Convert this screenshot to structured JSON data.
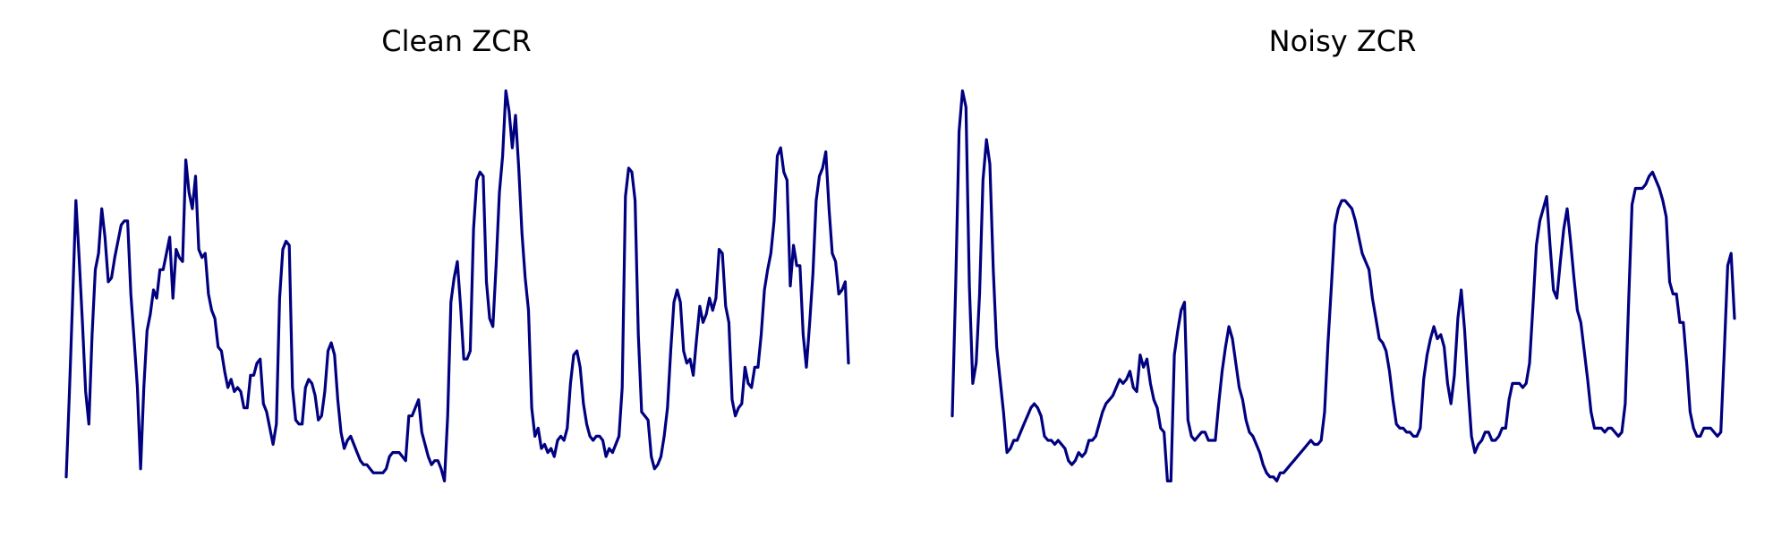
{
  "chart_data": [
    {
      "type": "line",
      "title": "Clean ZCR",
      "xlabel": "",
      "ylabel": "",
      "axes_visible": false,
      "grid": false,
      "legend": "none",
      "ylim": [
        0,
        1
      ],
      "color": "#000080",
      "series": [
        {
          "values": [
            0.04,
            0.25,
            0.48,
            0.72,
            0.58,
            0.42,
            0.25,
            0.17,
            0.39,
            0.55,
            0.59,
            0.7,
            0.63,
            0.52,
            0.53,
            0.58,
            0.62,
            0.66,
            0.67,
            0.67,
            0.49,
            0.38,
            0.26,
            0.06,
            0.26,
            0.4,
            0.44,
            0.5,
            0.48,
            0.55,
            0.55,
            0.59,
            0.63,
            0.48,
            0.6,
            0.58,
            0.57,
            0.82,
            0.74,
            0.7,
            0.78,
            0.6,
            0.58,
            0.59,
            0.49,
            0.45,
            0.43,
            0.36,
            0.35,
            0.3,
            0.26,
            0.28,
            0.25,
            0.26,
            0.25,
            0.21,
            0.21,
            0.29,
            0.29,
            0.32,
            0.33,
            0.22,
            0.2,
            0.16,
            0.12,
            0.17,
            0.48,
            0.6,
            0.62,
            0.61,
            0.26,
            0.18,
            0.17,
            0.17,
            0.26,
            0.28,
            0.27,
            0.24,
            0.18,
            0.19,
            0.25,
            0.35,
            0.37,
            0.34,
            0.23,
            0.15,
            0.11,
            0.13,
            0.14,
            0.12,
            0.1,
            0.08,
            0.07,
            0.07,
            0.06,
            0.05,
            0.05,
            0.05,
            0.05,
            0.06,
            0.09,
            0.1,
            0.1,
            0.1,
            0.09,
            0.08,
            0.19,
            0.19,
            0.21,
            0.23,
            0.15,
            0.12,
            0.09,
            0.07,
            0.08,
            0.08,
            0.06,
            0.03,
            0.19,
            0.47,
            0.53,
            0.57,
            0.46,
            0.33,
            0.33,
            0.35,
            0.65,
            0.77,
            0.79,
            0.78,
            0.52,
            0.43,
            0.41,
            0.56,
            0.74,
            0.83,
            0.99,
            0.94,
            0.85,
            0.93,
            0.8,
            0.64,
            0.53,
            0.45,
            0.21,
            0.14,
            0.16,
            0.11,
            0.12,
            0.1,
            0.11,
            0.09,
            0.13,
            0.14,
            0.13,
            0.16,
            0.27,
            0.34,
            0.35,
            0.31,
            0.22,
            0.17,
            0.14,
            0.13,
            0.14,
            0.14,
            0.13,
            0.09,
            0.11,
            0.1,
            0.12,
            0.14,
            0.26,
            0.73,
            0.8,
            0.79,
            0.72,
            0.39,
            0.2,
            0.19,
            0.18,
            0.09,
            0.06,
            0.07,
            0.09,
            0.14,
            0.21,
            0.35,
            0.47,
            0.5,
            0.47,
            0.35,
            0.32,
            0.33,
            0.29,
            0.38,
            0.46,
            0.42,
            0.44,
            0.48,
            0.45,
            0.48,
            0.6,
            0.59,
            0.46,
            0.42,
            0.23,
            0.19,
            0.21,
            0.22,
            0.31,
            0.27,
            0.26,
            0.31,
            0.31,
            0.39,
            0.5,
            0.55,
            0.59,
            0.67,
            0.83,
            0.85,
            0.79,
            0.77,
            0.51,
            0.61,
            0.56,
            0.56,
            0.39,
            0.31,
            0.42,
            0.54,
            0.72,
            0.78,
            0.8,
            0.84,
            0.7,
            0.59,
            0.57,
            0.49,
            0.5,
            0.52,
            0.32
          ]
        }
      ]
    },
    {
      "type": "line",
      "title": "Noisy ZCR",
      "xlabel": "",
      "ylabel": "",
      "axes_visible": false,
      "grid": false,
      "legend": "none",
      "ylim": [
        0,
        1
      ],
      "color": "#000080",
      "series": [
        {
          "values": [
            0.19,
            0.51,
            0.89,
            0.99,
            0.95,
            0.51,
            0.27,
            0.32,
            0.49,
            0.77,
            0.87,
            0.81,
            0.55,
            0.36,
            0.28,
            0.2,
            0.1,
            0.11,
            0.13,
            0.13,
            0.15,
            0.17,
            0.19,
            0.21,
            0.22,
            0.21,
            0.19,
            0.14,
            0.13,
            0.13,
            0.12,
            0.13,
            0.12,
            0.11,
            0.08,
            0.07,
            0.08,
            0.1,
            0.09,
            0.1,
            0.13,
            0.13,
            0.14,
            0.17,
            0.2,
            0.22,
            0.23,
            0.24,
            0.26,
            0.28,
            0.27,
            0.28,
            0.3,
            0.26,
            0.25,
            0.34,
            0.31,
            0.33,
            0.27,
            0.23,
            0.21,
            0.16,
            0.15,
            0.03,
            0.03,
            0.34,
            0.4,
            0.45,
            0.47,
            0.18,
            0.14,
            0.13,
            0.14,
            0.15,
            0.15,
            0.13,
            0.13,
            0.13,
            0.22,
            0.3,
            0.36,
            0.41,
            0.38,
            0.32,
            0.26,
            0.23,
            0.18,
            0.15,
            0.14,
            0.12,
            0.1,
            0.07,
            0.05,
            0.04,
            0.04,
            0.03,
            0.05,
            0.05,
            0.06,
            0.07,
            0.08,
            0.09,
            0.1,
            0.11,
            0.12,
            0.13,
            0.12,
            0.12,
            0.13,
            0.2,
            0.37,
            0.51,
            0.66,
            0.7,
            0.72,
            0.72,
            0.71,
            0.7,
            0.67,
            0.63,
            0.59,
            0.57,
            0.55,
            0.48,
            0.43,
            0.38,
            0.37,
            0.35,
            0.3,
            0.23,
            0.17,
            0.16,
            0.16,
            0.15,
            0.15,
            0.14,
            0.14,
            0.16,
            0.28,
            0.34,
            0.38,
            0.41,
            0.38,
            0.39,
            0.36,
            0.27,
            0.22,
            0.29,
            0.43,
            0.5,
            0.4,
            0.26,
            0.14,
            0.1,
            0.12,
            0.13,
            0.15,
            0.15,
            0.13,
            0.13,
            0.14,
            0.16,
            0.16,
            0.23,
            0.27,
            0.27,
            0.27,
            0.26,
            0.27,
            0.32,
            0.46,
            0.61,
            0.67,
            0.7,
            0.73,
            0.61,
            0.5,
            0.48,
            0.57,
            0.65,
            0.7,
            0.62,
            0.53,
            0.45,
            0.42,
            0.35,
            0.28,
            0.2,
            0.16,
            0.16,
            0.16,
            0.15,
            0.16,
            0.16,
            0.15,
            0.14,
            0.15,
            0.22,
            0.47,
            0.71,
            0.75,
            0.75,
            0.75,
            0.76,
            0.78,
            0.79,
            0.77,
            0.75,
            0.72,
            0.68,
            0.52,
            0.49,
            0.49,
            0.42,
            0.42,
            0.32,
            0.2,
            0.16,
            0.14,
            0.14,
            0.16,
            0.16,
            0.16,
            0.15,
            0.14,
            0.15,
            0.35,
            0.56,
            0.59,
            0.43
          ]
        }
      ]
    }
  ]
}
